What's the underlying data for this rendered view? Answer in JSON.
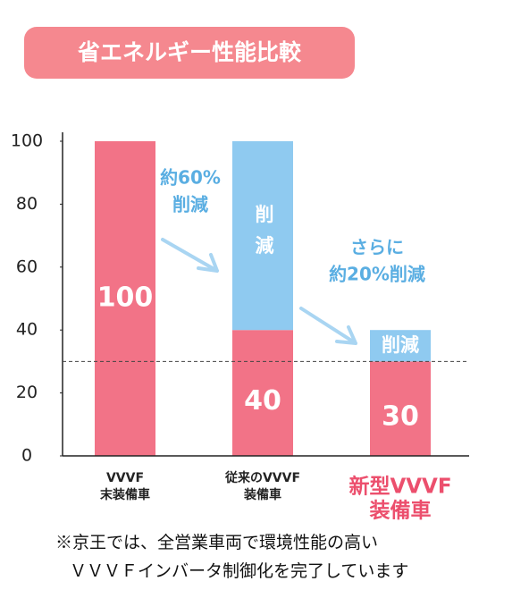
{
  "chart_data": {
    "type": "stacked_bar",
    "title": "省エネルギー性能比較",
    "categories": [
      [
        "VVVF",
        "末装備車"
      ],
      [
        "従来のVVVF",
        "装備車"
      ],
      [
        "新型VVVF",
        "装備車"
      ]
    ],
    "category_colors": [
      "#222222",
      "#222222",
      "#ec4f6d"
    ],
    "series": [
      {
        "color": "#f27387",
        "values": [
          100,
          40,
          30
        ]
      },
      {
        "color": "#8fcaf0",
        "values": [
          0,
          60,
          10
        ],
        "labels": [
          null,
          "削減",
          "削減"
        ]
      }
    ],
    "ylim": [
      0,
      100
    ],
    "yticks": [
      0,
      20,
      40,
      60,
      80,
      100
    ],
    "reference_line": 30,
    "annotations": [
      [
        "約60%",
        "削減"
      ],
      [
        "さらに",
        "約20%削減"
      ]
    ],
    "footnote": [
      "※京王では、全営業車両で環境性能の高い",
      "ＶＶＶＦインバータ制御化を完了しています"
    ]
  }
}
